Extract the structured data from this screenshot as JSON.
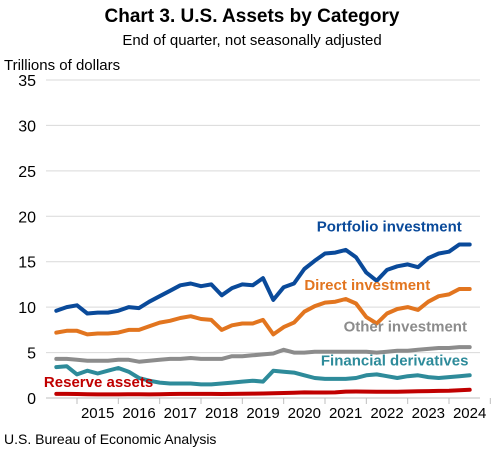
{
  "chart_data": {
    "type": "line",
    "title": "Chart 3. U.S. Assets by Category",
    "subtitle": "End of quarter, not seasonally adjusted",
    "ylabel": "Trillions of dollars",
    "source": "U.S. Bureau of Economic Analysis",
    "ylim": [
      0,
      35
    ],
    "yticks": [
      0,
      5,
      10,
      15,
      20,
      25,
      30,
      35
    ],
    "grid": true,
    "legend": "inline-labels",
    "x_start": 2014.25,
    "x_end": 2024.75,
    "xticks": [
      2015,
      2016,
      2017,
      2018,
      2019,
      2020,
      2021,
      2022,
      2023,
      2024
    ],
    "x": [
      2014.5,
      2014.75,
      2015.0,
      2015.25,
      2015.5,
      2015.75,
      2016.0,
      2016.25,
      2016.5,
      2016.75,
      2017.0,
      2017.25,
      2017.5,
      2017.75,
      2018.0,
      2018.25,
      2018.5,
      2018.75,
      2019.0,
      2019.25,
      2019.5,
      2019.75,
      2020.0,
      2020.25,
      2020.5,
      2020.75,
      2021.0,
      2021.25,
      2021.5,
      2021.75,
      2022.0,
      2022.25,
      2022.5,
      2022.75,
      2023.0,
      2023.25,
      2023.5,
      2023.75,
      2024.0,
      2024.25,
      2024.5
    ],
    "series": [
      {
        "name": "Portfolio investment",
        "color": "#0a4a9a",
        "values": [
          9.6,
          10.0,
          10.2,
          9.3,
          9.4,
          9.4,
          9.6,
          10.0,
          9.9,
          10.6,
          11.2,
          11.8,
          12.4,
          12.6,
          12.3,
          12.5,
          11.3,
          12.1,
          12.5,
          12.4,
          13.2,
          10.8,
          12.2,
          12.6,
          14.2,
          15.1,
          15.9,
          16.0,
          16.3,
          15.5,
          13.8,
          12.9,
          14.1,
          14.5,
          14.7,
          14.4,
          15.4,
          15.9,
          16.1,
          16.9,
          16.9
        ],
        "label_year": 2020.8,
        "label_value": 18.3
      },
      {
        "name": "Direct investment",
        "color": "#e2751f",
        "values": [
          7.2,
          7.4,
          7.4,
          7.0,
          7.1,
          7.1,
          7.2,
          7.5,
          7.5,
          7.9,
          8.3,
          8.5,
          8.8,
          9.0,
          8.7,
          8.6,
          7.5,
          8.0,
          8.2,
          8.2,
          8.6,
          7.0,
          7.8,
          8.3,
          9.5,
          10.1,
          10.5,
          10.6,
          10.9,
          10.4,
          8.9,
          8.2,
          9.3,
          9.8,
          10.0,
          9.7,
          10.6,
          11.2,
          11.4,
          12.0,
          12.0
        ],
        "label_year": 2020.5,
        "label_value": 11.9
      },
      {
        "name": "Other investment",
        "color": "#8c8c8c",
        "values": [
          4.3,
          4.3,
          4.2,
          4.1,
          4.1,
          4.1,
          4.2,
          4.2,
          4.0,
          4.1,
          4.2,
          4.3,
          4.3,
          4.4,
          4.3,
          4.3,
          4.3,
          4.6,
          4.6,
          4.7,
          4.8,
          4.9,
          5.3,
          5.0,
          5.0,
          5.1,
          5.1,
          5.1,
          5.1,
          5.1,
          5.1,
          5.0,
          5.1,
          5.2,
          5.2,
          5.3,
          5.4,
          5.5,
          5.5,
          5.6,
          5.6
        ],
        "label_year": 2021.45,
        "label_value": 7.3
      },
      {
        "name": "Financial derivatives",
        "color": "#2e8b9a",
        "values": [
          3.4,
          3.5,
          2.6,
          3.0,
          2.7,
          3.0,
          3.3,
          2.9,
          2.2,
          1.9,
          1.7,
          1.6,
          1.6,
          1.6,
          1.5,
          1.5,
          1.6,
          1.7,
          1.8,
          1.9,
          1.8,
          3.0,
          2.9,
          2.8,
          2.5,
          2.2,
          2.1,
          2.1,
          2.1,
          2.2,
          2.5,
          2.6,
          2.4,
          2.2,
          2.4,
          2.5,
          2.3,
          2.2,
          2.3,
          2.4,
          2.5
        ],
        "label_year": 2020.9,
        "label_value": 3.6
      },
      {
        "name": "Reserve assets",
        "color": "#c00000",
        "values": [
          0.45,
          0.45,
          0.44,
          0.42,
          0.4,
          0.4,
          0.4,
          0.42,
          0.42,
          0.4,
          0.42,
          0.44,
          0.45,
          0.45,
          0.45,
          0.45,
          0.44,
          0.45,
          0.47,
          0.48,
          0.5,
          0.52,
          0.55,
          0.58,
          0.62,
          0.6,
          0.6,
          0.62,
          0.7,
          0.71,
          0.7,
          0.69,
          0.68,
          0.69,
          0.72,
          0.74,
          0.76,
          0.78,
          0.8,
          0.86,
          0.9
        ],
        "label_year": 2014.2,
        "label_value": 1.2
      }
    ]
  }
}
